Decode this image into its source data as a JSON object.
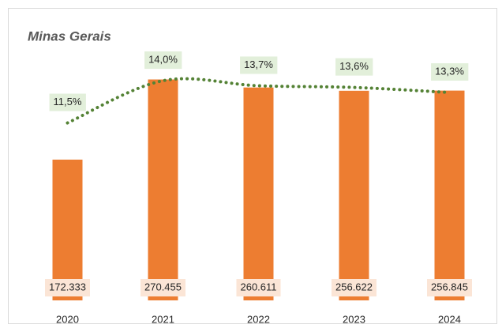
{
  "chart_data": {
    "type": "combo",
    "title": "Minas Gerais",
    "categories": [
      "2020",
      "2021",
      "2022",
      "2023",
      "2024"
    ],
    "series": [
      {
        "type": "bar",
        "color": "#ed7d31",
        "values": [
          172333,
          270455,
          260611,
          256622,
          256845
        ],
        "value_labels": [
          "172.333",
          "270.455",
          "260.611",
          "256.622",
          "256.845"
        ]
      },
      {
        "type": "line",
        "axis": "y2",
        "color": "#548235",
        "values": [
          11.5,
          14.0,
          13.7,
          13.6,
          13.3
        ],
        "value_labels": [
          "11,5%",
          "14,0%",
          "13,7%",
          "13,6%",
          "13,3%"
        ]
      }
    ],
    "ylim": [
      0,
      300000
    ],
    "y2lim": [
      1,
      15.5
    ]
  }
}
